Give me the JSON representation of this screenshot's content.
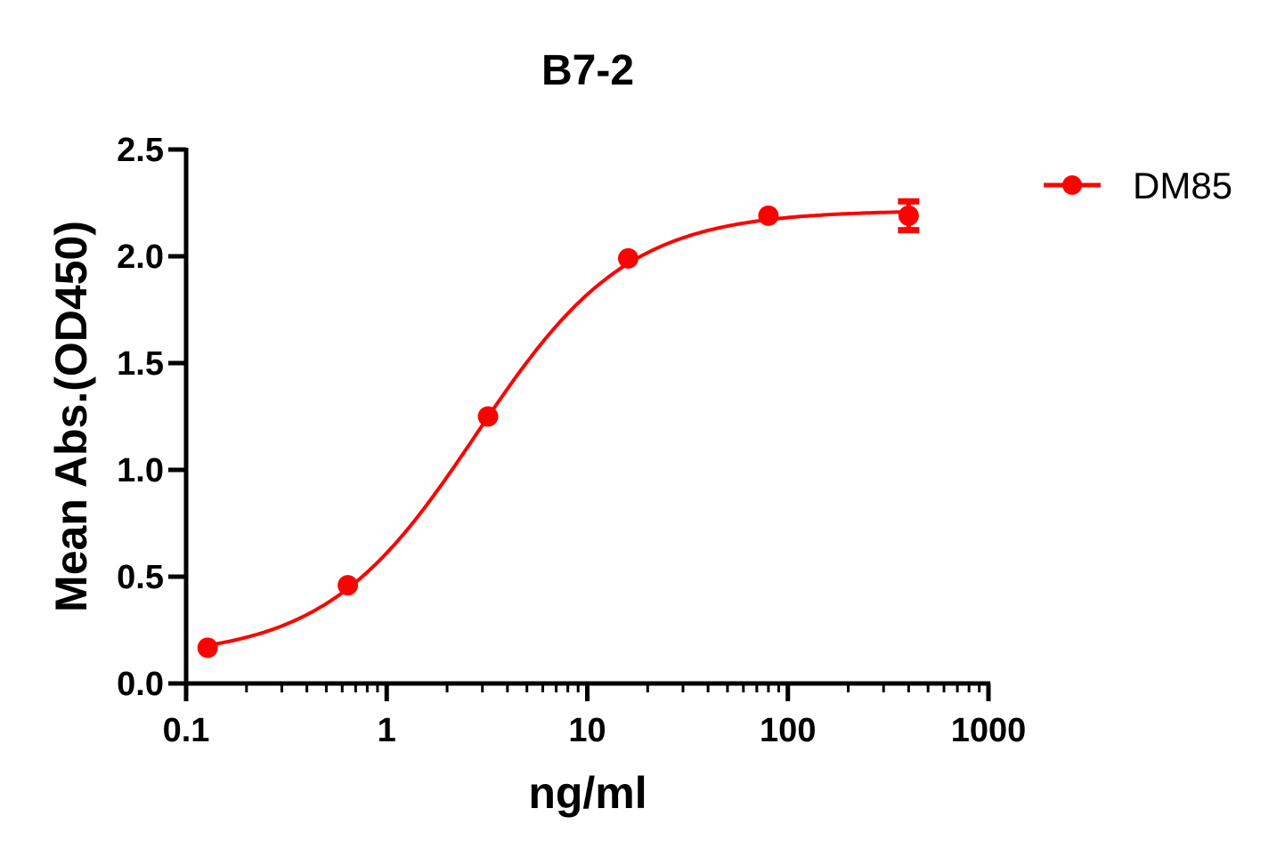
{
  "chart_data": {
    "type": "scatter",
    "title": "B7-2",
    "xlabel": "ng/ml",
    "ylabel": "Mean Abs.(OD450)",
    "xscale": "log",
    "xlim": [
      0.1,
      1000
    ],
    "ylim": [
      0,
      2.5
    ],
    "xticks": [
      "0.1",
      "1",
      "10",
      "100",
      "1000"
    ],
    "yticks": [
      "0.0",
      "0.5",
      "1.0",
      "1.5",
      "2.0",
      "2.5"
    ],
    "grid": false,
    "legend_position": "top-right",
    "series": [
      {
        "name": "DM85",
        "color": "#ff0000",
        "x": [
          0.128,
          0.64,
          3.2,
          16,
          80,
          400
        ],
        "y": [
          0.167,
          0.46,
          1.25,
          1.99,
          2.19,
          2.19
        ],
        "error": [
          0,
          0,
          0,
          0,
          0,
          0.08
        ],
        "fit_curve": "sigmoidal"
      }
    ]
  }
}
